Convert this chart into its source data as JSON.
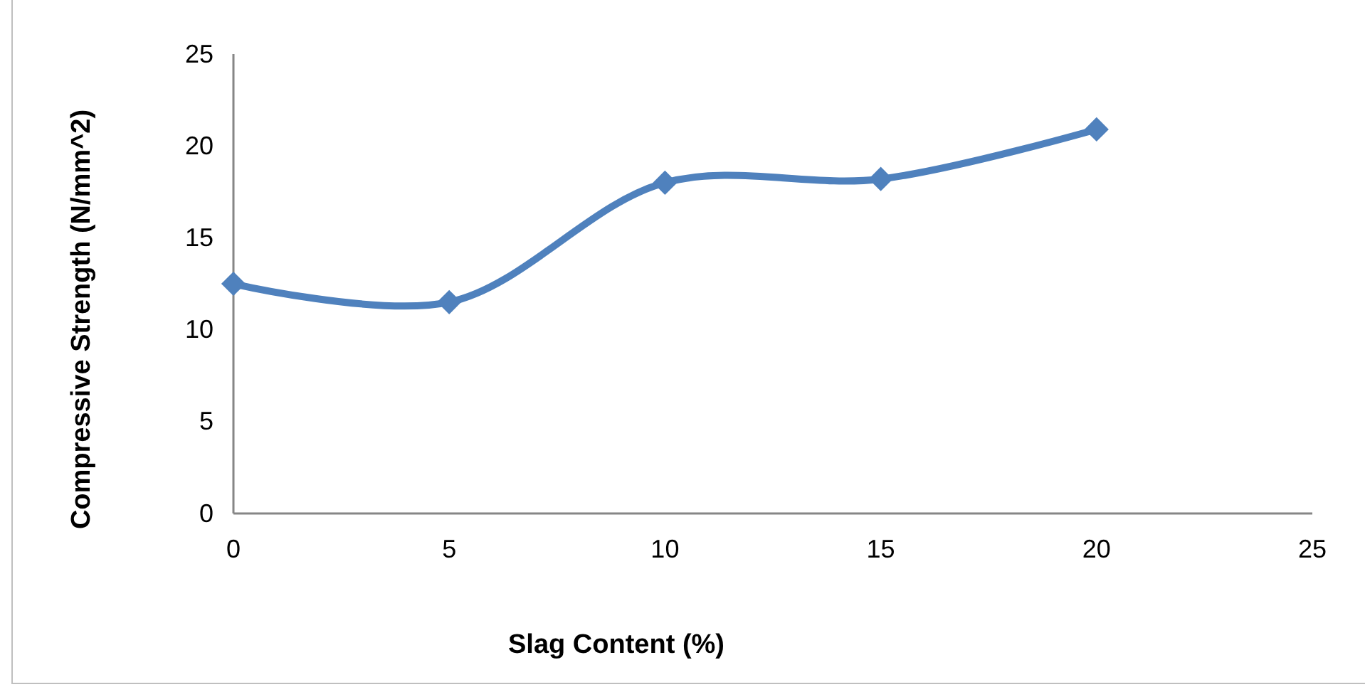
{
  "chart_data": {
    "type": "line",
    "xlabel": "Slag Content (%)",
    "ylabel": "Compressive Strength (N/mm^2)",
    "x": [
      0,
      5,
      10,
      15,
      20
    ],
    "series": [
      {
        "color": "#4f81bd",
        "values": [
          12.5,
          11.5,
          18.0,
          18.2,
          20.9
        ]
      }
    ],
    "xlim": [
      0,
      25
    ],
    "xticks": [
      0,
      5,
      10,
      15,
      20,
      25
    ],
    "ylim": [
      0,
      25
    ],
    "yticks": [
      0,
      5,
      10,
      15,
      20,
      25
    ],
    "grid": false,
    "marker": "diamond",
    "line_style": "solid"
  }
}
